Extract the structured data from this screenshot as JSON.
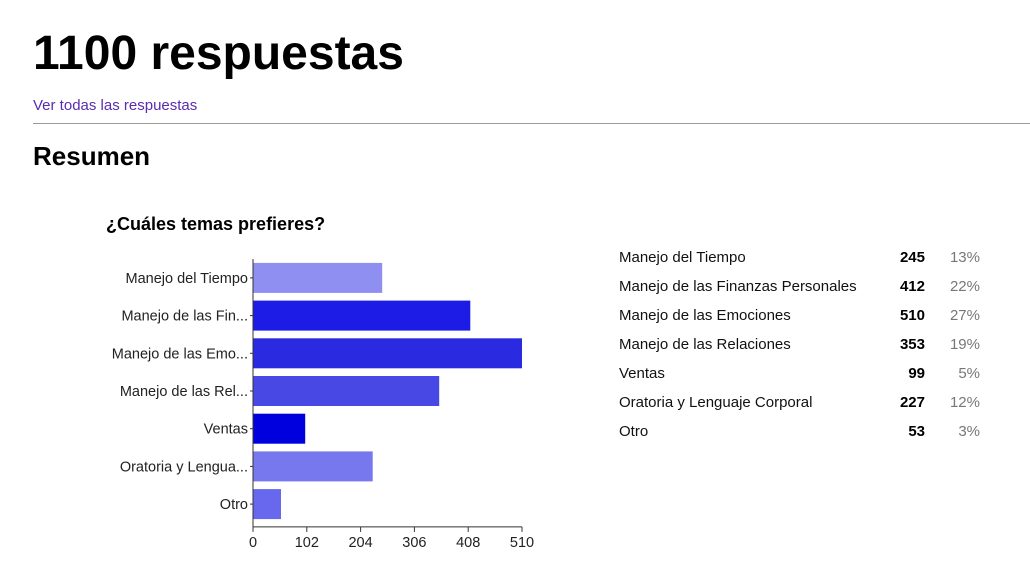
{
  "header": {
    "title": "1100 respuestas",
    "view_all_link": "Ver todas las respuestas"
  },
  "summary": {
    "title": "Resumen",
    "question": "¿Cuáles temas prefieres?",
    "rows": [
      {
        "label": "Manejo del Tiempo",
        "count": "245",
        "percent": "13%"
      },
      {
        "label": "Manejo de las Finanzas Personales",
        "count": "412",
        "percent": "22%"
      },
      {
        "label": "Manejo de las Emociones",
        "count": "510",
        "percent": "27%"
      },
      {
        "label": "Manejo de las Relaciones",
        "count": "353",
        "percent": "19%"
      },
      {
        "label": "Ventas",
        "count": "99",
        "percent": "5%"
      },
      {
        "label": "Oratoria y Lenguaje Corporal",
        "count": "227",
        "percent": "12%"
      },
      {
        "label": "Otro",
        "count": "53",
        "percent": "3%"
      }
    ]
  },
  "chart_data": {
    "type": "bar",
    "orientation": "horizontal",
    "title": "¿Cuáles temas prefieres?",
    "categories": [
      "Manejo del Tiempo",
      "Manejo de las Fin...",
      "Manejo de las Emo...",
      "Manejo de las Rel...",
      "Ventas",
      "Oratoria y Lengua...",
      "Otro"
    ],
    "values": [
      245,
      412,
      510,
      353,
      99,
      227,
      53
    ],
    "colors": [
      "#8f8ff2",
      "#1c1ce6",
      "#2a2ae0",
      "#4848e4",
      "#0000de",
      "#7777ee",
      "#6868ee"
    ],
    "x_ticks": [
      "0",
      "102",
      "204",
      "306",
      "408",
      "510"
    ],
    "xlim": [
      0,
      510
    ],
    "grid": false,
    "legend": "none"
  }
}
